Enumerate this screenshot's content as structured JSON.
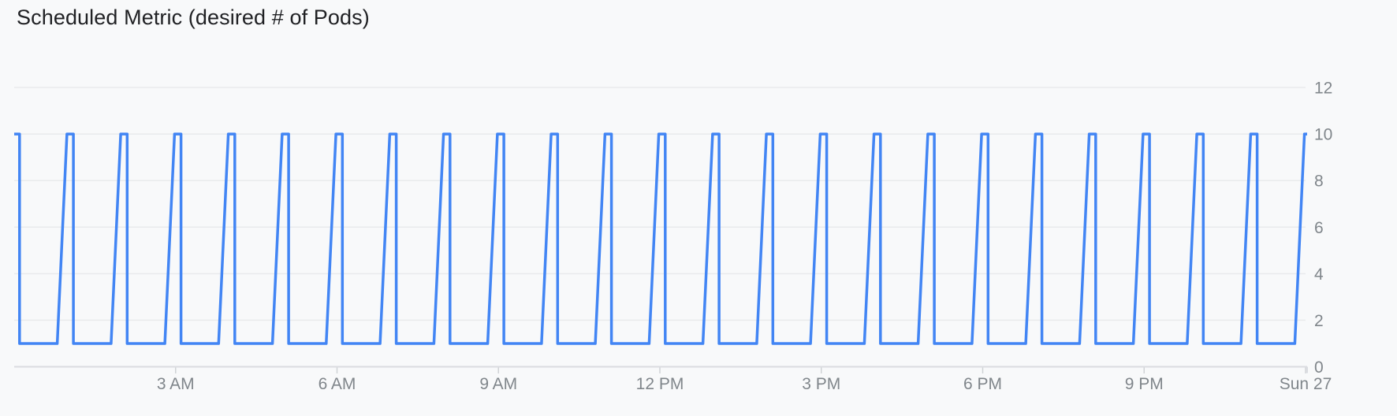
{
  "page": {
    "background_color": "#f8f9fa"
  },
  "header": {
    "title": "Scheduled Metric (desired # of Pods)"
  },
  "chart_data": {
    "type": "line",
    "title": "Scheduled Metric (desired # of Pods)",
    "x_axis": {
      "unit": "time of day",
      "start_hour": 0,
      "end_hour": 24,
      "end_of_axis_label": "Sun 27",
      "ticks": [
        {
          "hour": 3,
          "label": "3 AM"
        },
        {
          "hour": 6,
          "label": "6 AM"
        },
        {
          "hour": 9,
          "label": "9 AM"
        },
        {
          "hour": 12,
          "label": "12 PM"
        },
        {
          "hour": 15,
          "label": "3 PM"
        },
        {
          "hour": 18,
          "label": "6 PM"
        },
        {
          "hour": 21,
          "label": "9 PM"
        },
        {
          "hour": 24,
          "label": "Sun 27"
        }
      ]
    },
    "y_axis": {
      "position": "right",
      "range": [
        0,
        12
      ],
      "ticks": [
        0,
        2,
        4,
        6,
        8,
        10,
        12
      ]
    },
    "grid": {
      "show": true,
      "color": "#e9eaec"
    },
    "series": [
      {
        "name": "desired number of Pods",
        "shape": "hourly-spike-square-wave",
        "color": "#4285f4",
        "stroke_width": 3.5,
        "base_value": 1,
        "peak_value": 10,
        "spike_hours": [
          0,
          1,
          2,
          3,
          4,
          5,
          6,
          7,
          8,
          9,
          10,
          11,
          12,
          13,
          14,
          15,
          16,
          17,
          18,
          19,
          20,
          21,
          22,
          23,
          24
        ],
        "rise_start_offset_hours": -0.2,
        "peak_reached_offset_hours": -0.02,
        "fall_offset_hours": 0.1
      }
    ]
  },
  "colors": {
    "axis_line": "#dadce0",
    "tick_mark": "#d0d3d6",
    "axis_label": "#80868b",
    "title_text": "#202124",
    "series_line": "#4285f4",
    "grid_line": "#e9eaec",
    "background": "#f8f9fa"
  }
}
